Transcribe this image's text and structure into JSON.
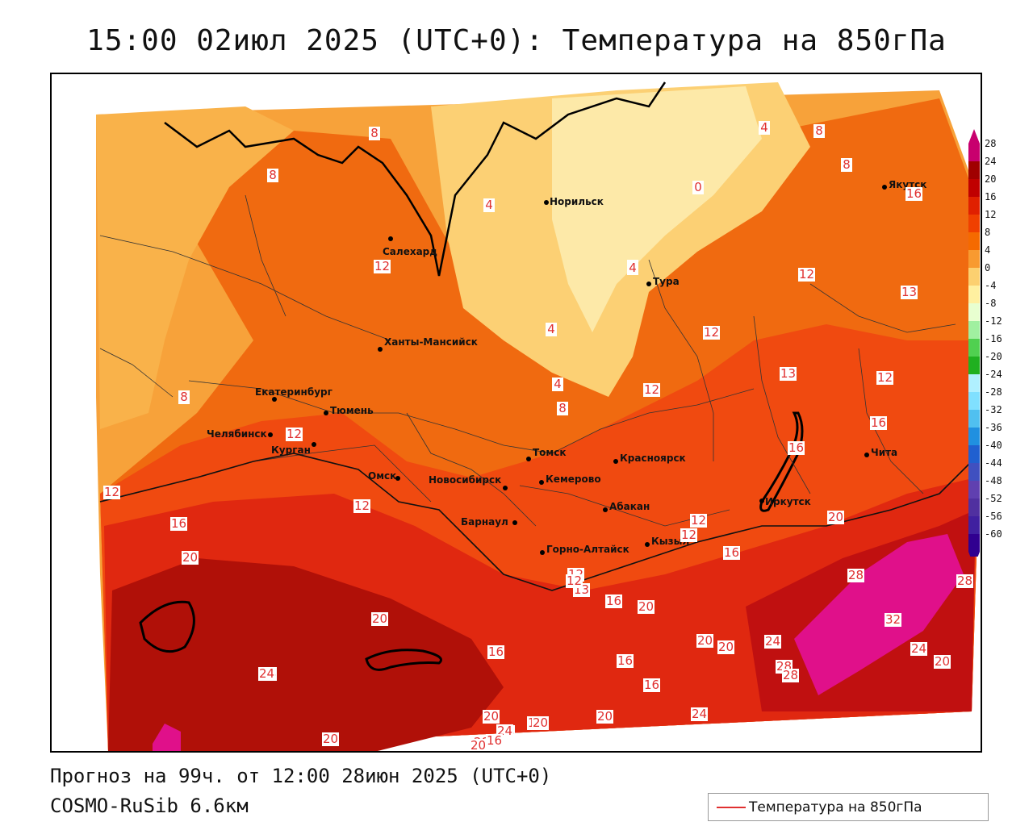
{
  "header": {
    "title": "15:00 02июл 2025 (UTC+0): Температура на 850гПа"
  },
  "footer": {
    "forecast_line": "Прогноз на 99ч. от 12:00 28июн 2025 (UTC+0)",
    "model_line": "COSMO-RuSib 6.6км"
  },
  "legend": {
    "label": "Температура на 850гПа",
    "line_color": "#e03030"
  },
  "colorbar": {
    "ticks": [
      "28",
      "24",
      "20",
      "16",
      "12",
      "8",
      "4",
      "0",
      "-4",
      "-8",
      "-12",
      "-16",
      "-20",
      "-24",
      "-28",
      "-32",
      "-36",
      "-40",
      "-44",
      "-48",
      "-52",
      "-56",
      "-60"
    ],
    "colors": [
      "#c8006e",
      "#a00000",
      "#c00000",
      "#e02000",
      "#f04000",
      "#f56a00",
      "#f89a30",
      "#fcd070",
      "#fff0a0",
      "#e8ffd0",
      "#a0f0a0",
      "#50d050",
      "#20b020",
      "#b0f0ff",
      "#80e0ff",
      "#50c0f0",
      "#2090e0",
      "#2060d0",
      "#4050c0",
      "#6040b0",
      "#5030a0",
      "#4020a0",
      "#300090"
    ]
  },
  "cities": [
    {
      "name": "Норильск"
    },
    {
      "name": "Салехард"
    },
    {
      "name": "Тура"
    },
    {
      "name": "Якутск"
    },
    {
      "name": "Ханты-Мансийск"
    },
    {
      "name": "Екатеринбург"
    },
    {
      "name": "Тюмень"
    },
    {
      "name": "Челябинск"
    },
    {
      "name": "Курган"
    },
    {
      "name": "Омск"
    },
    {
      "name": "Томск"
    },
    {
      "name": "Новосибирск"
    },
    {
      "name": "Кемерово"
    },
    {
      "name": "Красноярск"
    },
    {
      "name": "Барнаул"
    },
    {
      "name": "Абакан"
    },
    {
      "name": "Горно-Алтайск"
    },
    {
      "name": "Кызыл"
    },
    {
      "name": "Иркутск"
    },
    {
      "name": "Чита"
    }
  ],
  "contour_labels": [
    "8",
    "4",
    "0",
    "8",
    "8",
    "16",
    "8",
    "4",
    "4",
    "8",
    "12",
    "12",
    "12",
    "4",
    "13",
    "4",
    "12",
    "8",
    "13",
    "12",
    "8",
    "12",
    "16",
    "16",
    "12",
    "16",
    "12",
    "20",
    "20",
    "24",
    "12",
    "16",
    "20",
    "12",
    "13",
    "16",
    "20",
    "28",
    "28",
    "32",
    "24",
    "20",
    "20",
    "16",
    "16",
    "20",
    "16",
    "24",
    "28",
    "24",
    "20",
    "24",
    "16",
    "20",
    "20",
    "20",
    "24",
    "20",
    "16",
    "20",
    "24",
    "28",
    "12",
    "12"
  ]
}
